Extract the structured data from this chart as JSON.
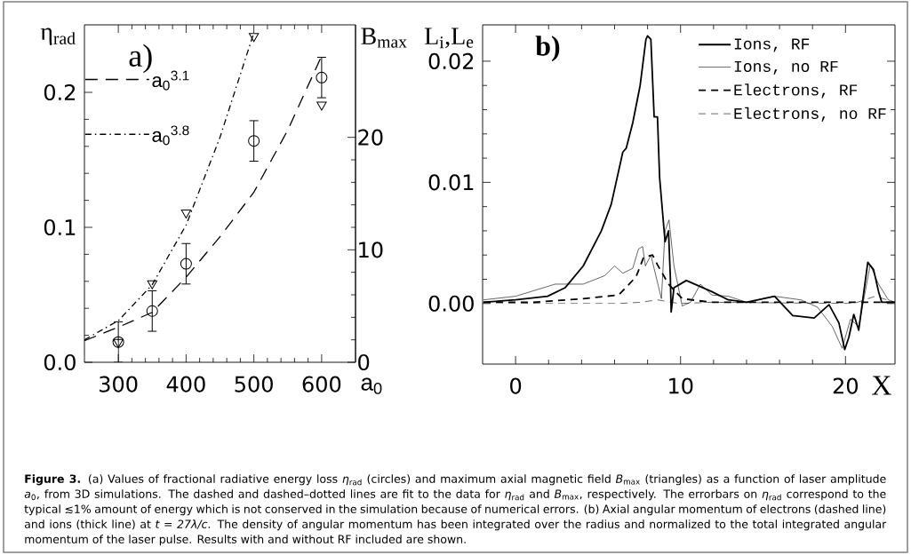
{
  "chart_data": [
    {
      "type": "scatter",
      "xlabel": "a$_{0}$",
      "ylabel": "η$_{rad}$",
      "y2label": "B$_{max}$",
      "annotations": [
        "a)"
      ],
      "xlim": [
        250,
        650
      ],
      "xticks": [
        300,
        400,
        500,
        600
      ],
      "ylim": [
        0,
        0.25
      ],
      "yticks": [
        {
          "value": 0,
          "label": "0.0"
        },
        0.1,
        0.2
      ],
      "y2lim": [
        0,
        30
      ],
      "y2ticks": [
        0,
        10,
        20
      ],
      "legend": "top left",
      "series": [
        {
          "type": "scatter",
          "marker": "circle",
          "color": "#000000",
          "x": [
            300,
            350,
            400,
            500,
            600
          ],
          "values": [
            0.015,
            0.038,
            0.073,
            0.164,
            0.211
          ],
          "errors": [
            0.015,
            0.015,
            0.015,
            0.015,
            0.015
          ]
        },
        {
          "type": "scatter",
          "marker": "triangle",
          "axis": "y2",
          "color": "#000000",
          "x": [
            300,
            350,
            400,
            500,
            600
          ],
          "values": [
            1.8,
            7.0,
            13.3,
            29.0,
            22.9
          ]
        },
        {
          "type": "line",
          "name": "a$_{0}$$^{3.1}$",
          "line_style": "dashed",
          "color": "#000000",
          "x": [
            250,
            300,
            350,
            400,
            450,
            500,
            550,
            600
          ],
          "values": [
            0.016,
            0.026,
            0.037,
            0.063,
            0.093,
            0.126,
            0.172,
            0.227
          ]
        },
        {
          "type": "line",
          "name": "a$_{0}$$^{3.8}$",
          "line_style": "dashdot",
          "axis": "y2",
          "color": "#000000",
          "x": [
            250,
            300,
            350,
            400,
            450,
            500
          ],
          "values": [
            2.0,
            3.7,
            6.9,
            12.2,
            20.0,
            29.3
          ]
        }
      ]
    },
    {
      "type": "line",
      "xlabel": "X",
      "ylabel": "L$_{i}$,L$_{e}$",
      "annotations": [
        "b)"
      ],
      "xlim": [
        -2,
        23
      ],
      "xticks": [
        0,
        10,
        20
      ],
      "ylim": [
        -0.005,
        0.023
      ],
      "yticks": [
        {
          "value": 0,
          "label": "0.00"
        },
        0.01,
        0.02
      ],
      "legend": "top right",
      "series": [
        {
          "name": "Ions, RF",
          "line_style": "solid",
          "color": "#000000",
          "x": [
            -1.95,
            0,
            1.94,
            3.0,
            4.1,
            5.2,
            5.8,
            6.5,
            6.7,
            7.1,
            7.55,
            7.9,
            8.0,
            8.2,
            8.4,
            8.6,
            8.73,
            9.06,
            9.27,
            9.38,
            9.43,
            9.6,
            10.35,
            11.86,
            12.9,
            14.0,
            15.7,
            16.8,
            18.1,
            19.0,
            19.6,
            19.95,
            20.2,
            20.5,
            20.8,
            21.35,
            21.7,
            22.0,
            22.2,
            23.0
          ],
          "values": [
            0.0001,
            0.0003,
            0.0006,
            0.0013,
            0.0031,
            0.006,
            0.0082,
            0.0125,
            0.0128,
            0.0149,
            0.018,
            0.0218,
            0.0221,
            0.0218,
            0.0154,
            0.0154,
            0.0104,
            0.0051,
            0.006,
            0.0022,
            -0.0007,
            0.0013,
            0.0019,
            0.001,
            0.0003,
            0.0001,
            0.0006,
            -0.001,
            -0.0012,
            -0.0001,
            -0.0016,
            -0.0038,
            -0.0028,
            -0.0009,
            -0.0022,
            0.0034,
            0.0028,
            0.001,
            0.0001,
            0.0001
          ]
        },
        {
          "name": "Ions, no RF",
          "line_style": "solid",
          "color": "#000000",
          "x": [
            -1.95,
            0,
            2.4,
            4.1,
            5.4,
            6.0,
            6.5,
            7.1,
            7.45,
            7.7,
            7.87,
            8.2,
            8.84,
            9.06,
            9.3,
            9.6,
            10.1,
            10.6,
            11.2,
            11.9,
            12.9,
            14.0,
            15.7,
            17.3,
            18.3,
            19.2,
            19.8,
            20.3,
            20.8,
            21.5,
            22.0,
            22.6,
            23.0
          ],
          "values": [
            0.0003,
            0.0006,
            0.0016,
            0.0016,
            0.0023,
            0.0031,
            0.0025,
            0.0029,
            0.0045,
            0.0047,
            0.0031,
            0.004,
            0.0004,
            0.006,
            0.0069,
            0.0031,
            -0.0002,
            0.0001,
            0.0016,
            0.0007,
            0.0006,
            0.0001,
            0.0006,
            0.0003,
            -0.0003,
            -0.0019,
            -0.0037,
            -0.0013,
            -0.0019,
            0.0032,
            0.0016,
            0.0003,
            0.0001
          ]
        },
        {
          "name": "Electrons, RF",
          "line_style": "dashed",
          "color": "#000000",
          "x": [
            -1.95,
            1.08,
            4.1,
            6.25,
            7.3,
            7.76,
            8.3,
            8.6,
            9.27,
            10.1,
            11.86,
            23.0
          ],
          "values": [
            0.0001,
            0.0001,
            0.0004,
            0.0007,
            0.0022,
            0.0038,
            0.004,
            0.0032,
            0.0016,
            0.0004,
            0.0001,
            0.0001
          ]
        },
        {
          "name": "Electrons, no RF",
          "line_style": "dashed",
          "color": "#000000",
          "x": [
            -1.95,
            1.5,
            6.25,
            7.55,
            8.6,
            9.9,
            11.86,
            20.5,
            21.8,
            23.0
          ],
          "values": [
            0.0001,
            0,
            0,
            0.0001,
            0.0003,
            0,
            0.0001,
            0,
            0.0006,
            0.0001
          ]
        }
      ]
    },
    {
      "type": "other",
      "annotations": [
        "**Figure 3.** (a) Values of fractional radiative energy loss *η*$_{rad}$ (circles) and maximum axial magnetic field *B*$_{max}$ (triangles) as a function of laser amplitude *a*$_{0}$, from 3D simulations. The dashed and dashed–dotted lines are fit to the data for *η*$_{rad}$ and *B*$_{max}$, respectively. The errorbars on *η*$_{rad}$ correspond to the typical ≲1% amount of energy which is not conserved in the simulation because of numerical errors. (b) Axial angular momentum of electrons (dashed line) and ions (thick line) at *t = 27λ/c*. The density of angular momentum has been integrated over the radius and normalized to the total integrated angular momentum of the laser pulse. Results with and without RF included are shown."
      ]
    }
  ]
}
